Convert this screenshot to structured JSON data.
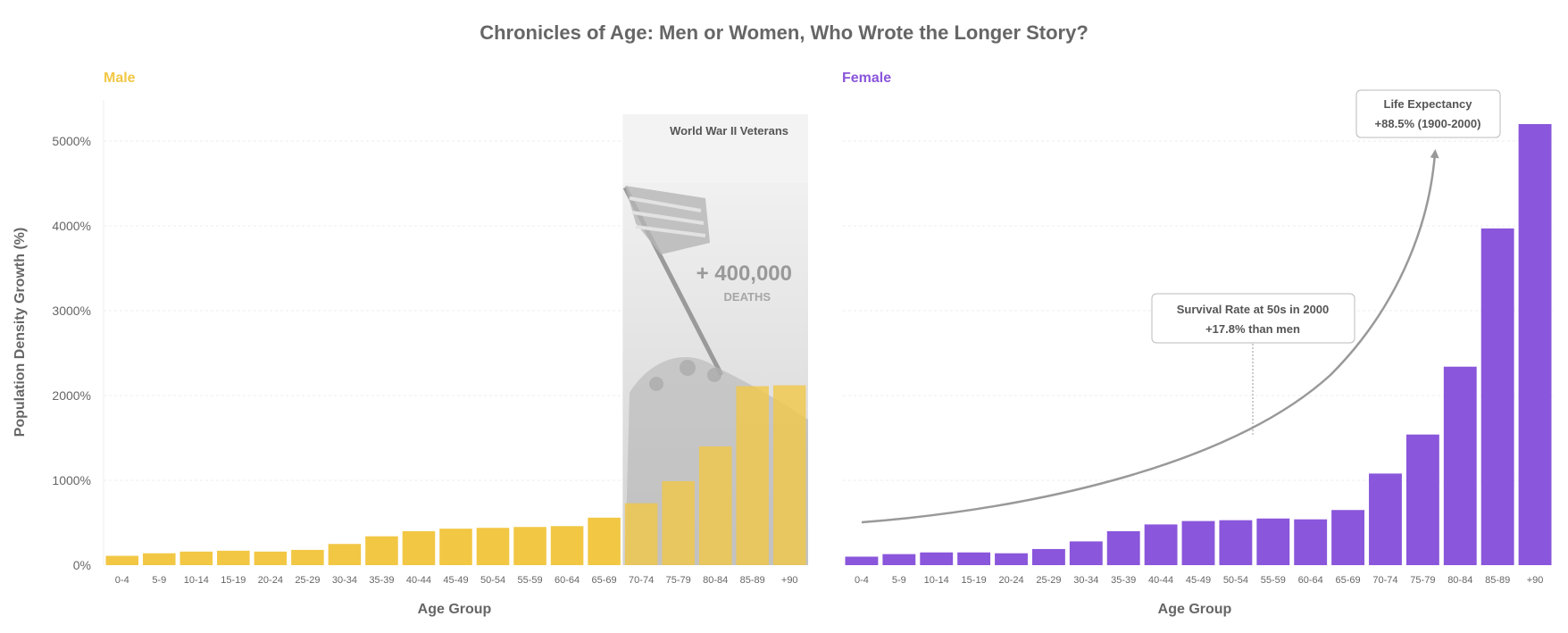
{
  "title": "Chronicles of Age: Men or Women, Who Wrote the Longer Story?",
  "colors": {
    "male": "#F2C744",
    "female": "#8A56DB",
    "text": "#666666",
    "shade": "#d8d8d8",
    "curve": "#999999"
  },
  "chart_data": [
    {
      "type": "bar",
      "panel_label": "Male",
      "xlabel": "Age Group",
      "ylabel": "Population Density Growth (%)",
      "ylim": [
        0,
        5500
      ],
      "yticks": [
        0,
        1000,
        2000,
        3000,
        4000,
        5000
      ],
      "ytick_labels": [
        "0%",
        "1000%",
        "2000%",
        "3000%",
        "4000%",
        "5000%"
      ],
      "categories": [
        "0-4",
        "5-9",
        "10-14",
        "15-19",
        "20-24",
        "25-29",
        "30-34",
        "35-39",
        "40-44",
        "45-49",
        "50-54",
        "55-59",
        "60-64",
        "65-69",
        "70-74",
        "75-79",
        "80-84",
        "85-89",
        "+90"
      ],
      "values": [
        110,
        140,
        160,
        170,
        160,
        180,
        250,
        340,
        400,
        430,
        440,
        450,
        460,
        560,
        730,
        990,
        1400,
        2110,
        2120
      ],
      "grid": true,
      "highlight": {
        "label": "World War II Veterans",
        "from": "70-74",
        "to": "+90",
        "number": "+ 400,000",
        "caption": "DEATHS"
      }
    },
    {
      "type": "bar",
      "panel_label": "Female",
      "xlabel": "Age Group",
      "ylim": [
        0,
        5500
      ],
      "yticks": [
        0,
        1000,
        2000,
        3000,
        4000,
        5000
      ],
      "categories": [
        "0-4",
        "5-9",
        "10-14",
        "15-19",
        "20-24",
        "25-29",
        "30-34",
        "35-39",
        "40-44",
        "45-49",
        "50-54",
        "55-59",
        "60-64",
        "65-69",
        "70-74",
        "75-79",
        "80-84",
        "85-89",
        "+90"
      ],
      "values": [
        100,
        130,
        150,
        150,
        140,
        190,
        280,
        400,
        480,
        520,
        530,
        550,
        540,
        650,
        1080,
        1540,
        2340,
        3970,
        5200
      ],
      "grid": true,
      "annotations": [
        {
          "lines": [
            "Survival Rate at 50s in 2000",
            "+17.8% than men"
          ]
        },
        {
          "lines": [
            "Life Expectancy",
            "+88.5% (1900-2000)"
          ]
        }
      ]
    }
  ]
}
